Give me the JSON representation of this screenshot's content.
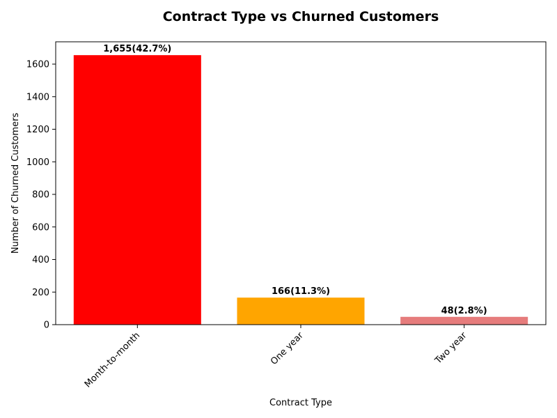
{
  "chart_data": {
    "type": "bar",
    "title": "Contract Type vs Churned Customers",
    "xlabel": "Contract Type",
    "ylabel": "Number of Churned Customers",
    "categories": [
      "Month-to-month",
      "One year",
      "Two year"
    ],
    "values": [
      1655,
      166,
      48
    ],
    "data_labels": [
      "1,655(42.7%)",
      "166(11.3%)",
      "48(2.8%)"
    ],
    "colors": [
      "#ff0000",
      "#ffa500",
      "#e67c7c"
    ],
    "ylim": [
      0,
      1737
    ],
    "yticks": [
      0,
      200,
      400,
      600,
      800,
      1000,
      1200,
      1400,
      1600
    ],
    "grid": false,
    "legend": "none"
  }
}
